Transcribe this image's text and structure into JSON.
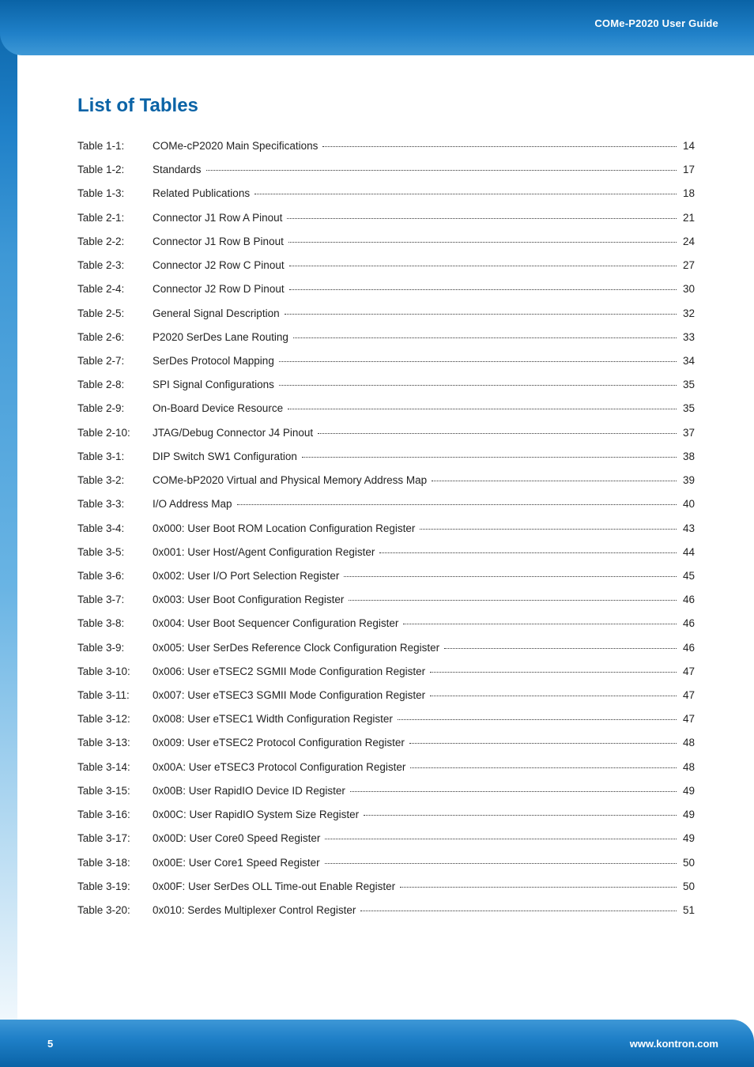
{
  "header": {
    "title": "COMe-P2020 User Guide"
  },
  "footer": {
    "page": "5",
    "url": "www.kontron.com"
  },
  "section_title": "List of Tables",
  "toc": [
    {
      "label": "Table 1-1:",
      "title": "COMe-cP2020 Main Specifications",
      "page": "14"
    },
    {
      "label": "Table 1-2:",
      "title": "Standards",
      "page": "17"
    },
    {
      "label": "Table 1-3:",
      "title": "Related Publications",
      "page": "18"
    },
    {
      "label": "Table 2-1:",
      "title": "Connector J1 Row A Pinout",
      "page": "21"
    },
    {
      "label": "Table 2-2:",
      "title": "Connector J1 Row B Pinout",
      "page": "24"
    },
    {
      "label": "Table 2-3:",
      "title": "Connector J2 Row C Pinout",
      "page": "27"
    },
    {
      "label": "Table 2-4:",
      "title": "Connector J2 Row D Pinout",
      "page": "30"
    },
    {
      "label": "Table 2-5:",
      "title": "General Signal Description",
      "page": "32"
    },
    {
      "label": "Table 2-6:",
      "title": "P2020 SerDes Lane Routing",
      "page": "33"
    },
    {
      "label": "Table 2-7:",
      "title": "SerDes Protocol Mapping",
      "page": "34"
    },
    {
      "label": "Table 2-8:",
      "title": "SPI Signal Configurations",
      "page": "35"
    },
    {
      "label": "Table 2-9:",
      "title": "On-Board Device Resource",
      "page": "35"
    },
    {
      "label": "Table 2-10:",
      "title": "JTAG/Debug Connector J4 Pinout",
      "page": "37"
    },
    {
      "label": "Table 3-1:",
      "title": "DIP Switch SW1 Configuration",
      "page": "38"
    },
    {
      "label": "Table 3-2:",
      "title": "COMe-bP2020 Virtual and Physical Memory Address Map",
      "page": "39"
    },
    {
      "label": "Table 3-3:",
      "title": "I/O Address Map",
      "page": "40"
    },
    {
      "label": "Table 3-4:",
      "title": "0x000: User Boot ROM Location Configuration Register",
      "page": "43"
    },
    {
      "label": "Table 3-5:",
      "title": "0x001: User Host/Agent Configuration Register",
      "page": "44"
    },
    {
      "label": "Table 3-6:",
      "title": "0x002: User I/O Port Selection Register",
      "page": "45"
    },
    {
      "label": "Table 3-7:",
      "title": "0x003: User Boot Configuration Register",
      "page": "46"
    },
    {
      "label": "Table 3-8:",
      "title": "0x004: User Boot Sequencer Configuration Register",
      "page": "46"
    },
    {
      "label": "Table 3-9:",
      "title": "0x005: User SerDes Reference Clock Configuration Register",
      "page": "46"
    },
    {
      "label": "Table 3-10:",
      "title": "0x006: User eTSEC2 SGMII Mode Configuration Register",
      "page": "47"
    },
    {
      "label": "Table 3-11:",
      "title": "0x007: User eTSEC3 SGMII Mode Configuration Register",
      "page": "47"
    },
    {
      "label": "Table 3-12:",
      "title": "0x008: User eTSEC1 Width Configuration Register",
      "page": "47"
    },
    {
      "label": "Table 3-13:",
      "title": "0x009: User eTSEC2 Protocol Configuration Register",
      "page": "48"
    },
    {
      "label": "Table 3-14:",
      "title": "0x00A: User eTSEC3 Protocol Configuration Register",
      "page": "48"
    },
    {
      "label": "Table 3-15:",
      "title": "0x00B: User RapidIO Device ID Register",
      "page": "49"
    },
    {
      "label": "Table 3-16:",
      "title": "0x00C: User RapidIO System Size Register",
      "page": "49"
    },
    {
      "label": "Table 3-17:",
      "title": "0x00D: User Core0 Speed Register",
      "page": "49"
    },
    {
      "label": "Table 3-18:",
      "title": "0x00E: User Core1 Speed Register",
      "page": "50"
    },
    {
      "label": "Table 3-19:",
      "title": "0x00F: User SerDes OLL Time-out Enable Register",
      "page": "50"
    },
    {
      "label": "Table 3-20:",
      "title": "0x010: Serdes Multiplexer Control Register",
      "page": "51"
    }
  ]
}
